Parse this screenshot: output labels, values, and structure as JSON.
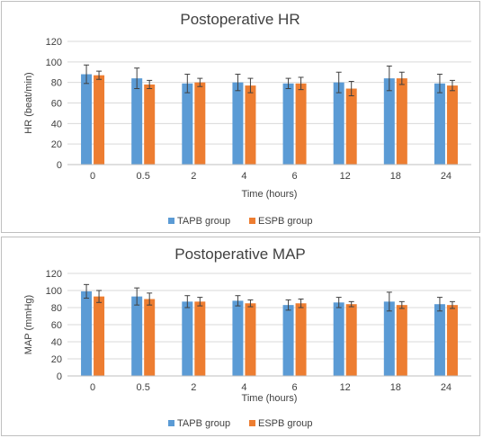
{
  "colors": {
    "tapb": "#5b9bd5",
    "espb": "#ed7d31",
    "grid": "#d9d9d9",
    "error_bar": "#404040"
  },
  "chart_data": [
    {
      "type": "bar",
      "title": "Postoperative HR",
      "xlabel": "Time (hours)",
      "ylabel": "HR (beat/min)",
      "ylim": [
        0,
        120
      ],
      "yticks": [
        0,
        20,
        40,
        60,
        80,
        100,
        120
      ],
      "grid": true,
      "legend_position": "bottom",
      "categories": [
        "0",
        "0.5",
        "2",
        "4",
        "6",
        "12",
        "18",
        "24"
      ],
      "series": [
        {
          "name": "TAPB group",
          "color": "#5b9bd5",
          "values": [
            88,
            84,
            79,
            80,
            79,
            80,
            84,
            79
          ],
          "error": [
            9,
            10,
            9,
            8,
            5,
            10,
            12,
            9
          ]
        },
        {
          "name": "ESPB group",
          "color": "#ed7d31",
          "values": [
            87,
            78,
            80,
            77,
            79,
            74,
            84,
            77
          ],
          "error": [
            4,
            4,
            4,
            7,
            6,
            7,
            6,
            5
          ]
        }
      ]
    },
    {
      "type": "bar",
      "title": "Postoperative MAP",
      "xlabel": "Time (hours)",
      "ylabel": "MAP (mmHg)",
      "ylim": [
        0,
        120
      ],
      "yticks": [
        0,
        20,
        40,
        60,
        80,
        100,
        120
      ],
      "grid": true,
      "legend_position": "bottom",
      "categories": [
        "0",
        "0.5",
        "2",
        "4",
        "6",
        "12",
        "18",
        "24"
      ],
      "series": [
        {
          "name": "TAPB group",
          "color": "#5b9bd5",
          "values": [
            99,
            93,
            87,
            88,
            83,
            86,
            87,
            84
          ],
          "error": [
            8,
            10,
            7,
            6,
            6,
            6,
            11,
            8
          ]
        },
        {
          "name": "ESPB group",
          "color": "#ed7d31",
          "values": [
            93,
            90,
            87,
            85,
            85,
            84,
            83,
            83
          ],
          "error": [
            7,
            7,
            5,
            4,
            5,
            3,
            4,
            4
          ]
        }
      ]
    }
  ]
}
